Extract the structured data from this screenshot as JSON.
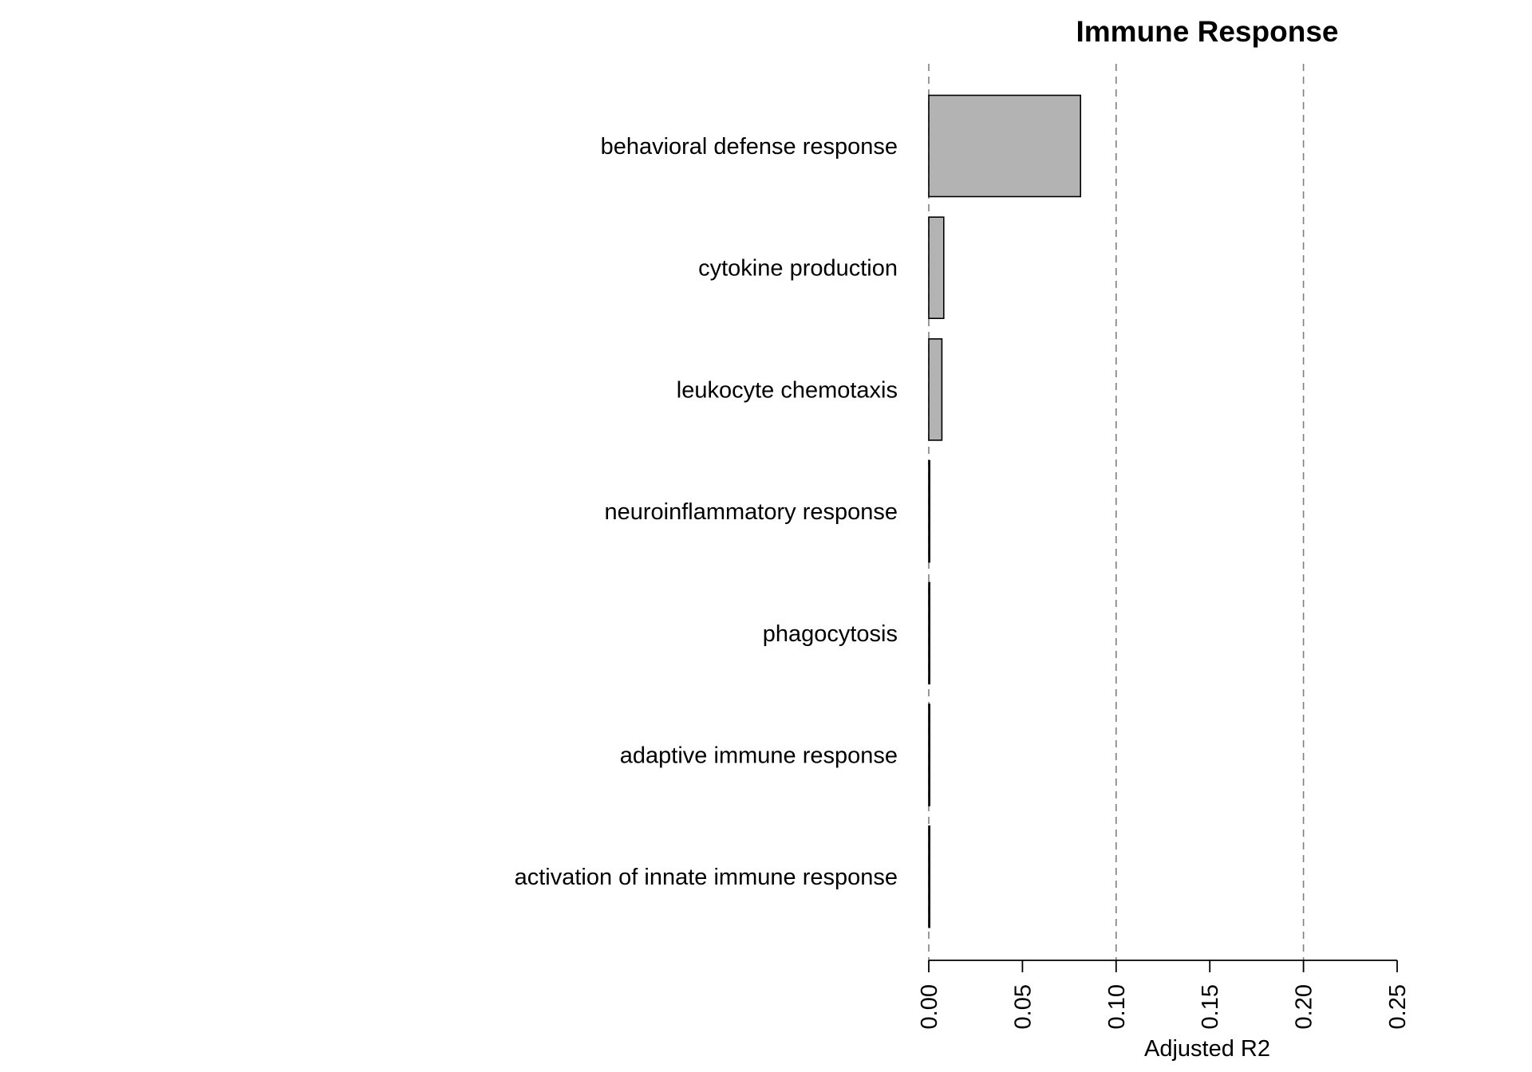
{
  "chart_data": {
    "type": "bar",
    "orientation": "horizontal",
    "title": "Immune Response",
    "xlabel": "Adjusted R2",
    "ylabel": "",
    "categories": [
      "behavioral defense response",
      "cytokine production",
      "leukocyte chemotaxis",
      "neuroinflammatory response",
      "phagocytosis",
      "adaptive immune response",
      "activation of innate immune response"
    ],
    "values": [
      0.081,
      0.008,
      0.007,
      0.0005,
      0.0005,
      0.0005,
      0.0005
    ],
    "xlim": [
      0,
      0.25
    ],
    "x_ticks": [
      "0.00",
      "0.05",
      "0.10",
      "0.15",
      "0.20",
      "0.25"
    ],
    "x_tick_values": [
      0,
      0.05,
      0.1,
      0.15,
      0.2,
      0.25
    ],
    "reference_lines": [
      0,
      0.1,
      0.2
    ],
    "grid": false,
    "legend": "none",
    "colors": {
      "bar_fill": "#b3b3b3",
      "bar_stroke": "#000000",
      "reference_line": "#7f7f7f",
      "axis": "#000000"
    }
  }
}
